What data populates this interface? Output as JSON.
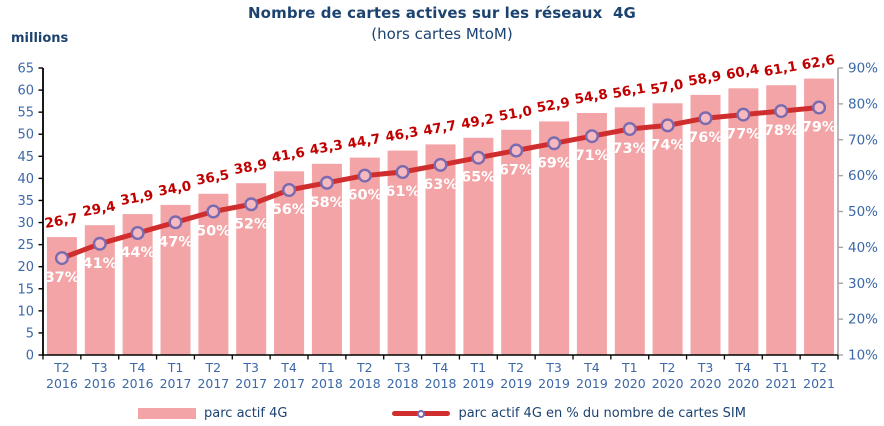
{
  "header": {
    "title": "Nombre de cartes actives sur les réseaux  4G",
    "subtitle": "(hors cartes MtoM)",
    "unit_label": "millions"
  },
  "legend": {
    "position": "bottom",
    "items": [
      {
        "label": "parc actif 4G",
        "swatch": "bar-swatch"
      },
      {
        "label": "parc actif 4G en % du nombre de cartes SIM",
        "swatch": "line-marker-swatch"
      }
    ]
  },
  "colors": {
    "title_text": "#1C4370",
    "axis_text": "#3C68A8",
    "bar": "#F2A4A6",
    "value_label": "#C00000",
    "line": "#D02E2E",
    "marker_stroke": "#7A6BB0",
    "marker_fill": "#F6B9C0",
    "percent_label": "#FFFFFF",
    "axis_line": "#000000",
    "right_axis_line": "#A6A6A6"
  },
  "chart_data": {
    "type": "bar",
    "subtype": "bar-line-combo",
    "title": "Nombre de cartes actives sur les réseaux 4G (hors cartes MtoM)",
    "categories": [
      [
        "T2",
        "2016"
      ],
      [
        "T3",
        "2016"
      ],
      [
        "T4",
        "2016"
      ],
      [
        "T1",
        "2017"
      ],
      [
        "T2",
        "2017"
      ],
      [
        "T3",
        "2017"
      ],
      [
        "T4",
        "2017"
      ],
      [
        "T1",
        "2018"
      ],
      [
        "T2",
        "2018"
      ],
      [
        "T3",
        "2018"
      ],
      [
        "T4",
        "2018"
      ],
      [
        "T1",
        "2019"
      ],
      [
        "T2",
        "2019"
      ],
      [
        "T3",
        "2019"
      ],
      [
        "T4",
        "2019"
      ],
      [
        "T1",
        "2020"
      ],
      [
        "T2",
        "2020"
      ],
      [
        "T3",
        "2020"
      ],
      [
        "T4",
        "2020"
      ],
      [
        "T1",
        "2021"
      ],
      [
        "T2",
        "2021"
      ]
    ],
    "series": [
      {
        "name": "parc actif 4G",
        "type": "bar",
        "axis": "left",
        "values": [
          26.7,
          29.4,
          31.9,
          34.0,
          36.5,
          38.9,
          41.6,
          43.3,
          44.7,
          46.3,
          47.7,
          49.2,
          51.0,
          52.9,
          54.8,
          56.1,
          57.0,
          58.9,
          60.4,
          61.1,
          62.6
        ]
      },
      {
        "name": "parc actif 4G en % du nombre de cartes SIM",
        "type": "line",
        "axis": "right",
        "values": [
          37,
          41,
          44,
          47,
          50,
          52,
          56,
          58,
          60,
          61,
          63,
          65,
          67,
          69,
          71,
          73,
          74,
          76,
          77,
          78,
          79
        ]
      }
    ],
    "left_axis": {
      "label": "millions",
      "min": 0,
      "max": 65,
      "step": 5
    },
    "right_axis": {
      "min": 10,
      "max": 90,
      "step": 10,
      "suffix": "%"
    },
    "grid": false,
    "legend_position": "bottom"
  }
}
